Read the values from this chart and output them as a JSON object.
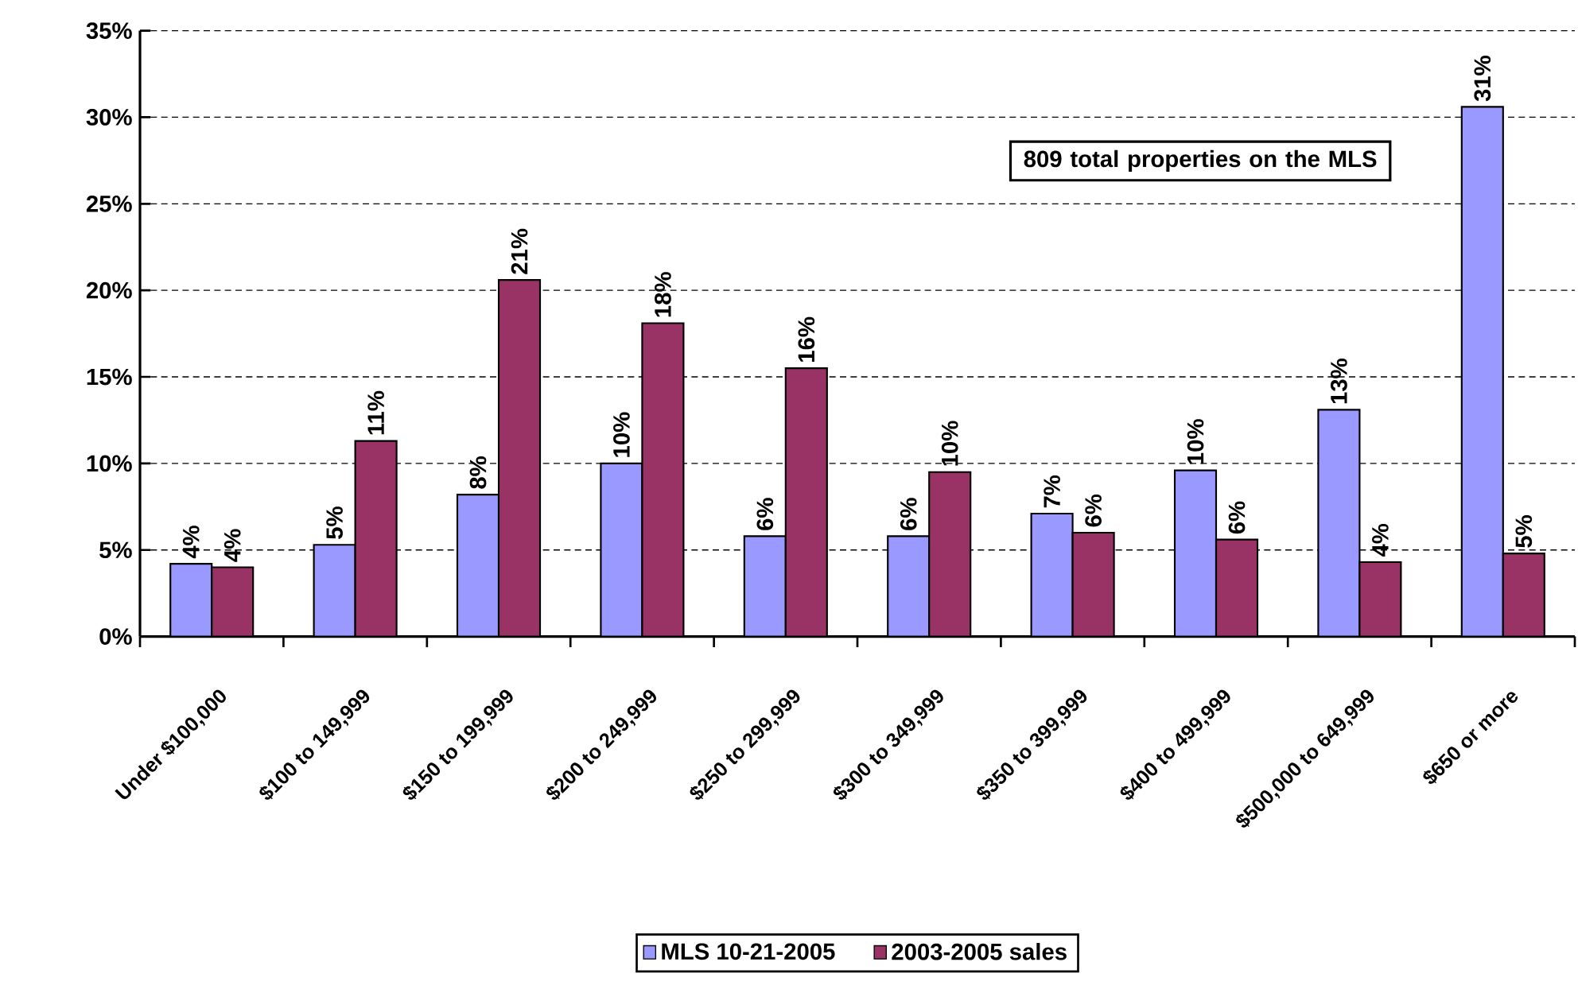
{
  "chart_data": {
    "type": "bar",
    "categories": [
      "Under $100,000",
      "$100 to 149,999",
      "$150 to 199,999",
      "$200 to 249,999",
      "$250 to 299,999",
      "$300 to 349,999",
      "$350 to 399,999",
      "$400 to 499,999",
      "$500,000 to 649,999",
      "$650 or more"
    ],
    "series": [
      {
        "name": "MLS 10-21-2005",
        "color": "#9999ff",
        "values": [
          4.2,
          5.3,
          8.2,
          10.0,
          5.8,
          5.8,
          7.1,
          9.6,
          13.1,
          30.6
        ],
        "value_labels": [
          "4%",
          "5%",
          "8%",
          "10%",
          "6%",
          "6%",
          "7%",
          "10%",
          "13%",
          "31%"
        ]
      },
      {
        "name": "2003-2005 sales",
        "color": "#993366",
        "values": [
          4.0,
          11.3,
          20.6,
          18.1,
          15.5,
          9.5,
          6.0,
          5.6,
          4.3,
          4.8
        ],
        "value_labels": [
          "4%",
          "11%",
          "21%",
          "18%",
          "16%",
          "10%",
          "6%",
          "6%",
          "4%",
          "5%"
        ]
      }
    ],
    "ylim": [
      0,
      35
    ],
    "yticks": [
      {
        "value": 0,
        "label": "0%"
      },
      {
        "value": 5,
        "label": "5%"
      },
      {
        "value": 10,
        "label": "10%"
      },
      {
        "value": 15,
        "label": "15%"
      },
      {
        "value": 20,
        "label": "20%"
      },
      {
        "value": 25,
        "label": "25%"
      },
      {
        "value": 30,
        "label": "30%"
      },
      {
        "value": 35,
        "label": "35%"
      }
    ],
    "grid": "y",
    "legend": "bottom",
    "annotations": [
      "809 total properties on the MLS"
    ]
  }
}
